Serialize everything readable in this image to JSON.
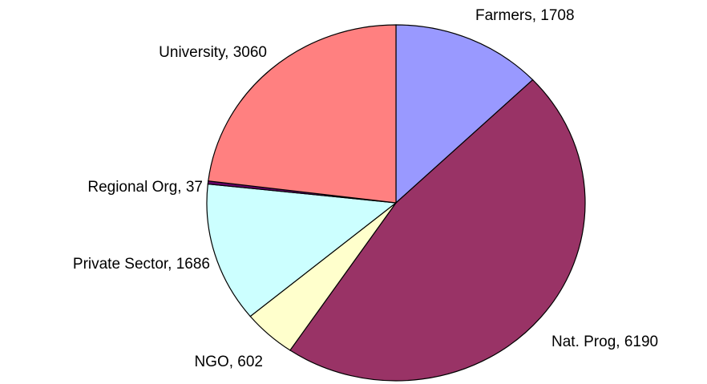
{
  "chart_data": {
    "type": "pie",
    "values": [
      1708,
      6190,
      602,
      1686,
      37,
      3060
    ],
    "value_labels": [
      "Farmers, 1708",
      "Nat. Prog, 6190",
      "NGO, 602",
      "Private Sector, 1686",
      "Regional Org, 37",
      "University, 3060"
    ],
    "colors": [
      "#9999ff",
      "#993366",
      "#ffffcc",
      "#ccffff",
      "#660066",
      "#ff8080"
    ]
  }
}
